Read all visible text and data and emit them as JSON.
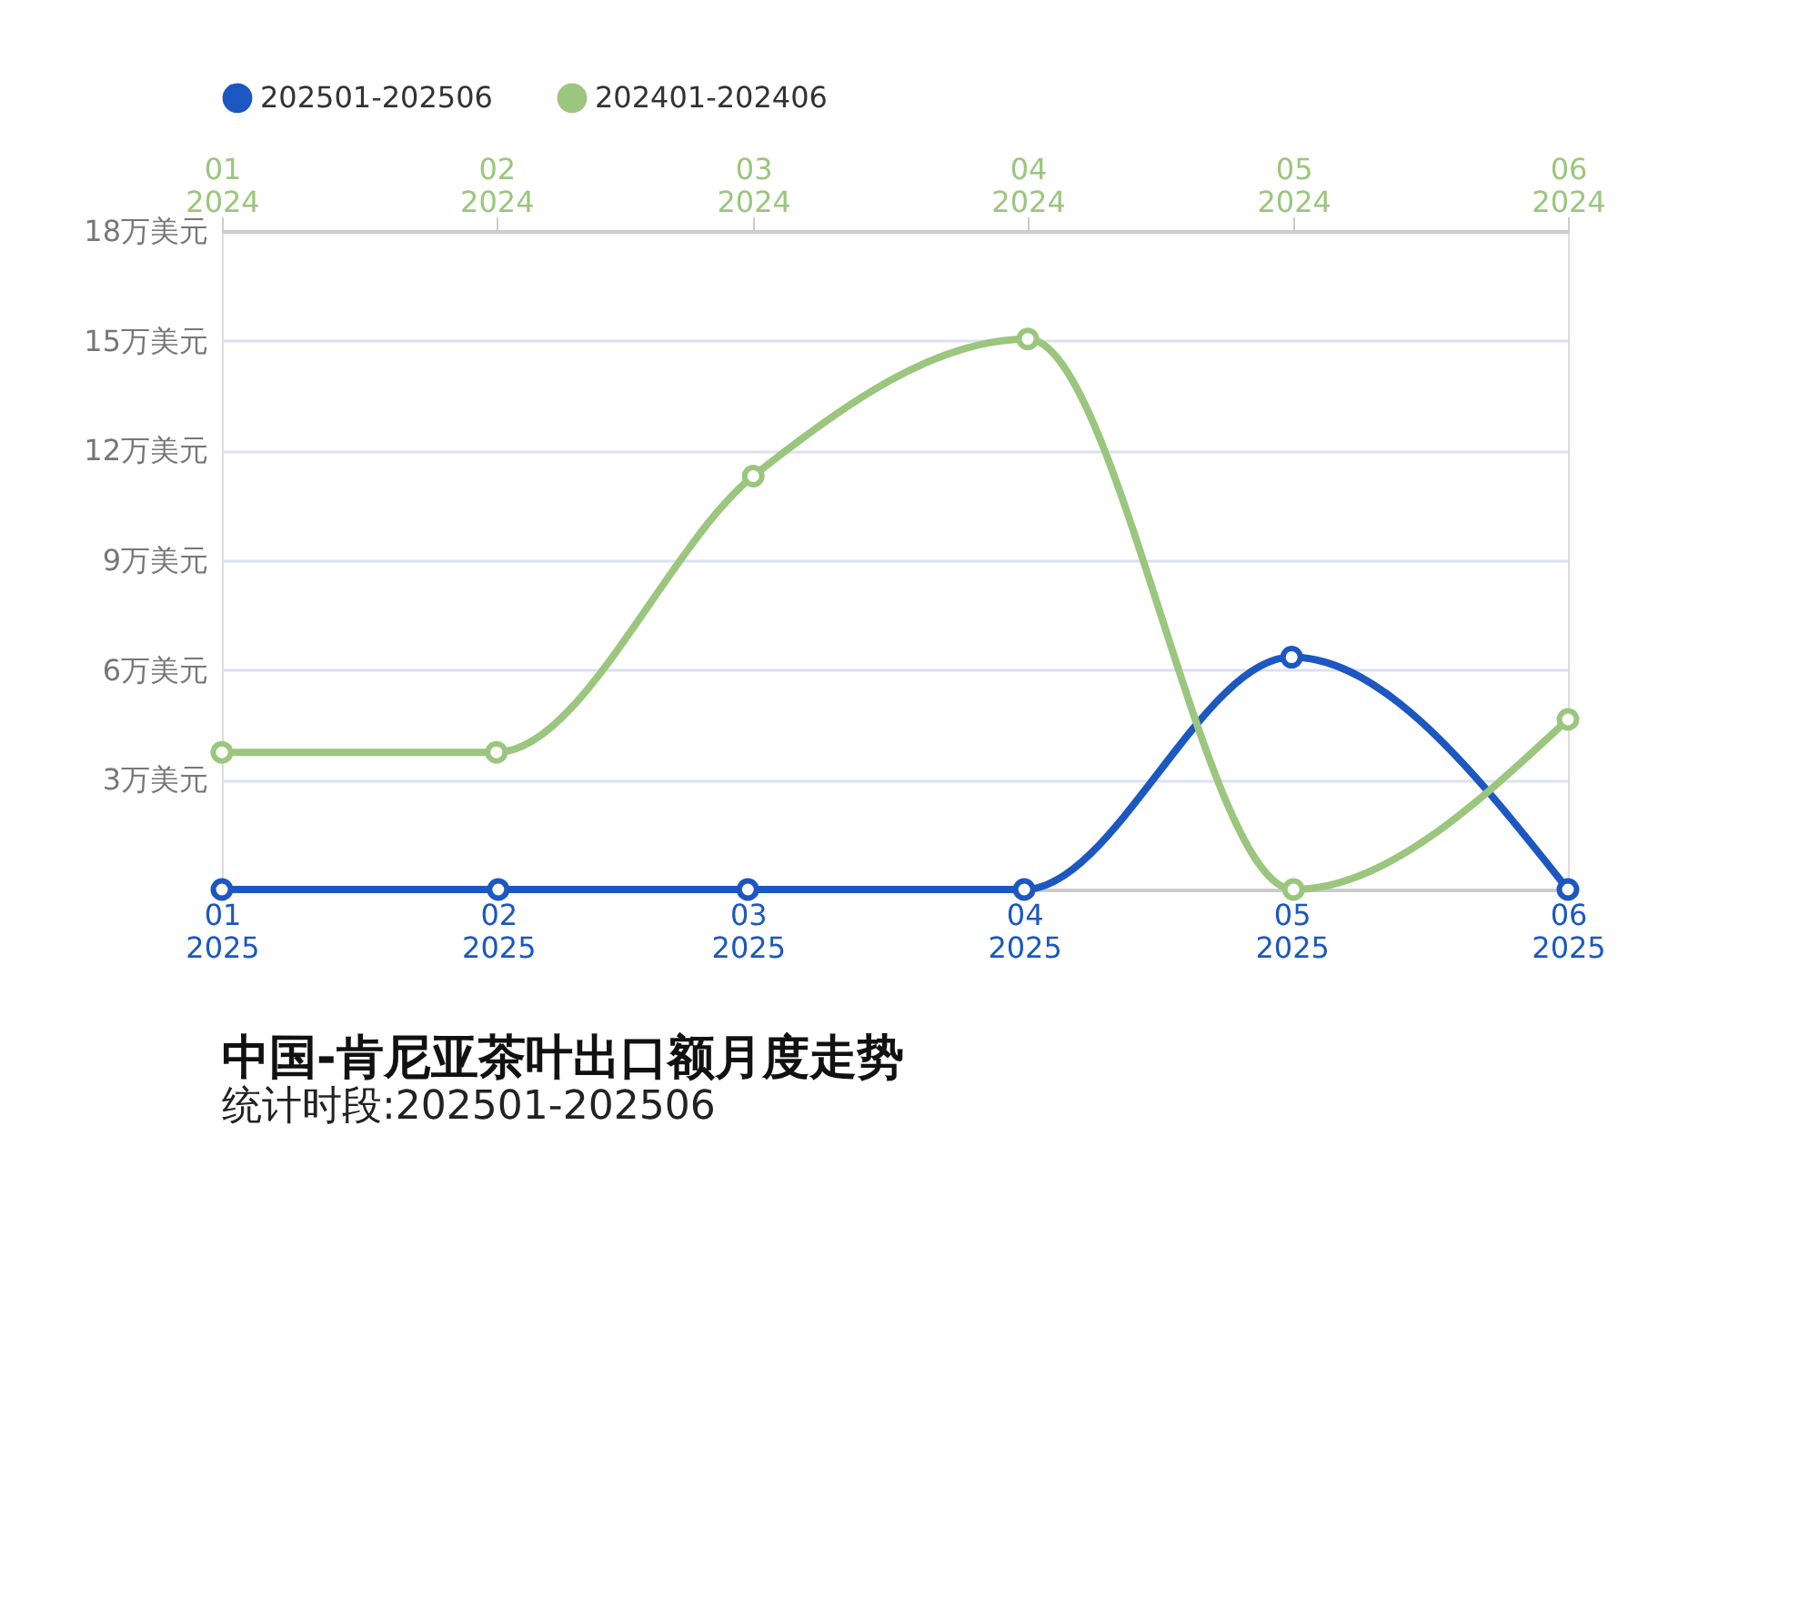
{
  "chart_data": {
    "type": "line",
    "title": "中国-肯尼亚茶叶出口额月度走势",
    "subtitle": "统计时段:202501-202506",
    "xlim": [
      "2025-01",
      "2025-06"
    ],
    "xticks": [
      {
        "value": "2025-01",
        "label": "01\n2025"
      },
      {
        "value": "2025-02",
        "label": "02\n2025"
      },
      {
        "value": "2025-03",
        "label": "03\n2025"
      },
      {
        "value": "2025-04",
        "label": "04\n2025"
      },
      {
        "value": "2025-05",
        "label": "05\n2025"
      },
      {
        "value": "2025-06",
        "label": "06\n2025"
      }
    ],
    "x2lim": [
      "2024-01",
      "2024-06"
    ],
    "x2ticks": [
      {
        "value": "2024-01",
        "label": "01\n2024"
      },
      {
        "value": "2024-02",
        "label": "02\n2024"
      },
      {
        "value": "2024-03",
        "label": "03\n2024"
      },
      {
        "value": "2024-04",
        "label": "04\n2024"
      },
      {
        "value": "2024-05",
        "label": "05\n2024"
      },
      {
        "value": "2024-06",
        "label": "06\n2024"
      }
    ],
    "ylim": [
      0,
      18
    ],
    "yticks": [
      {
        "value": 0,
        "label": null
      },
      {
        "value": 3,
        "label": "3万美元"
      },
      {
        "value": 6,
        "label": "6万美元"
      },
      {
        "value": 9,
        "label": "9万美元"
      },
      {
        "value": 12,
        "label": "12万美元"
      },
      {
        "value": 15,
        "label": "15万美元"
      },
      {
        "value": 18,
        "label": "18万美元"
      }
    ],
    "series": [
      {
        "name": "202501-202506",
        "color": "#1c57c2",
        "x": [
          "2025-01",
          "2025-02",
          "2025-03",
          "2025-04",
          "2025-05",
          "2025-06"
        ],
        "values": [
          0,
          0,
          0,
          0,
          6.35,
          0
        ]
      },
      {
        "name": "202401-202406",
        "color": "#9bc67e",
        "axis": "x2",
        "x": [
          "2024-01",
          "2024-02",
          "2024-03",
          "2024-04",
          "2024-05",
          "2024-06"
        ],
        "values": [
          3.75,
          3.75,
          11.3,
          15.05,
          0,
          4.65
        ]
      }
    ],
    "grid": "y",
    "legend": "top",
    "marker": "circle",
    "line_style": "solid"
  }
}
